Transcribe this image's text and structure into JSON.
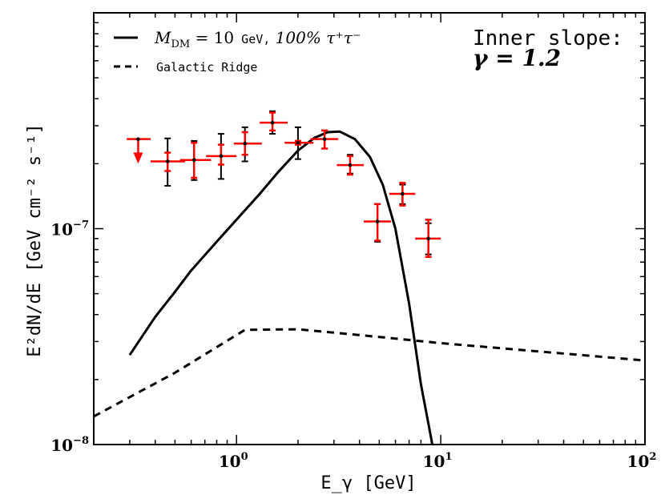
{
  "chart_data": {
    "type": "scatter",
    "title": "",
    "xlabel": "E_γ [GeV]",
    "ylabel": "E²dN/dE [GeV cm⁻² s⁻¹]",
    "x_scale": "log",
    "y_scale": "log",
    "xlim": [
      0.2,
      100
    ],
    "ylim": [
      1e-08,
      1e-06
    ],
    "x_ticks": [
      {
        "value": 1,
        "base": "10",
        "exp": "0"
      },
      {
        "value": 10,
        "base": "10",
        "exp": "1"
      },
      {
        "value": 100,
        "base": "10",
        "exp": "2"
      }
    ],
    "y_ticks": [
      {
        "value": 1e-08,
        "base": "10",
        "exp": "−8"
      },
      {
        "value": 1e-07,
        "base": "10",
        "exp": "−7"
      }
    ],
    "legend": {
      "placement": "top-left",
      "items": [
        {
          "style": "solid",
          "label_main": "M",
          "label_sub": "DM",
          "label_eq": " = 10",
          "label_unit": " GeV,",
          "label_rest": " 100% τ⁺τ⁻"
        },
        {
          "style": "dashed",
          "label": "Galactic Ridge"
        }
      ]
    },
    "annotation": {
      "line1": "Inner slope:",
      "line2": "γ = 1.2"
    },
    "series": [
      {
        "name": "M_DM = 10 GeV, 100% τ⁺τ⁻",
        "style": "solid",
        "x": [
          0.3,
          0.4,
          0.5,
          0.6,
          0.8,
          1.0,
          1.3,
          1.6,
          2.0,
          2.4,
          2.8,
          3.2,
          3.8,
          4.5,
          5.2,
          6.0,
          7.0,
          8.0,
          8.7,
          9.1
        ],
        "y": [
          2.6e-08,
          3.9e-08,
          5.1e-08,
          6.4e-08,
          8.7e-08,
          1.1e-07,
          1.45e-07,
          1.83e-07,
          2.3e-07,
          2.63e-07,
          2.8e-07,
          2.82e-07,
          2.6e-07,
          2.15e-07,
          1.6e-07,
          1e-07,
          4.5e-08,
          1.9e-08,
          1.25e-08,
          1e-08
        ]
      },
      {
        "name": "Galactic Ridge",
        "style": "dashed",
        "x": [
          0.2,
          0.5,
          1.1,
          2.0,
          3.0,
          5.0,
          10.0,
          30.0,
          100.0
        ],
        "y": [
          1.35e-08,
          2.15e-08,
          3.4e-08,
          3.42e-08,
          3.3e-08,
          3.15e-08,
          2.95e-08,
          2.7e-08,
          2.45e-08
        ]
      }
    ],
    "red_points": [
      {
        "x": 0.33,
        "y": 2.6e-07,
        "upper_limit": true,
        "arrow_to": 2e-07,
        "xerr": [
          0.29,
          0.38
        ]
      },
      {
        "x": 0.46,
        "y": 2.05e-07,
        "yerr": [
          1.85e-07,
          2.25e-07
        ],
        "xerr": [
          0.38,
          0.56
        ]
      },
      {
        "x": 0.62,
        "y": 2.08e-07,
        "yerr": [
          1.72e-07,
          2.5e-07
        ],
        "xerr": [
          0.53,
          0.75
        ]
      },
      {
        "x": 0.84,
        "y": 2.17e-07,
        "yerr": [
          1.98e-07,
          2.45e-07
        ],
        "xerr": [
          0.71,
          1.0
        ]
      },
      {
        "x": 1.1,
        "y": 2.48e-07,
        "yerr": [
          2.2e-07,
          2.8e-07
        ],
        "xerr": [
          0.97,
          1.33
        ]
      },
      {
        "x": 1.5,
        "y": 3.1e-07,
        "yerr": [
          2.85e-07,
          3.45e-07
        ],
        "xerr": [
          1.3,
          1.78
        ]
      },
      {
        "x": 2.0,
        "y": 2.5e-07,
        "yerr": [
          2.45e-07,
          2.55e-07
        ],
        "xerr": [
          1.72,
          2.38
        ]
      },
      {
        "x": 2.7,
        "y": 2.6e-07,
        "yerr": [
          2.35e-07,
          2.85e-07
        ],
        "xerr": [
          2.3,
          3.15
        ]
      },
      {
        "x": 3.6,
        "y": 1.97e-07,
        "yerr": [
          1.78e-07,
          2.17e-07
        ],
        "xerr": [
          3.1,
          4.2
        ]
      },
      {
        "x": 4.9,
        "y": 1.08e-07,
        "yerr": [
          8.8e-08,
          1.3e-07
        ],
        "xerr": [
          4.2,
          5.7
        ]
      },
      {
        "x": 6.5,
        "y": 1.45e-07,
        "yerr": [
          1.28e-07,
          1.63e-07
        ],
        "xerr": [
          5.6,
          7.5
        ]
      },
      {
        "x": 8.7,
        "y": 9e-08,
        "yerr": [
          7.4e-08,
          1.1e-07
        ],
        "xerr": [
          7.5,
          10.0
        ]
      }
    ],
    "black_points": [
      {
        "x": 0.33,
        "y": 2.6e-07
      },
      {
        "x": 0.46,
        "y": 2.05e-07,
        "yerr": [
          1.58e-07,
          2.62e-07
        ]
      },
      {
        "x": 0.62,
        "y": 2.08e-07,
        "yerr": [
          1.68e-07,
          2.55e-07
        ]
      },
      {
        "x": 0.84,
        "y": 2.17e-07,
        "yerr": [
          1.7e-07,
          2.75e-07
        ]
      },
      {
        "x": 1.1,
        "y": 2.48e-07,
        "yerr": [
          2.05e-07,
          2.95e-07
        ]
      },
      {
        "x": 1.5,
        "y": 3.1e-07,
        "yerr": [
          2.75e-07,
          3.5e-07
        ]
      },
      {
        "x": 2.0,
        "y": 2.5e-07,
        "yerr": [
          2.1e-07,
          2.95e-07
        ]
      },
      {
        "x": 2.7,
        "y": 2.6e-07,
        "yerr": [
          2.35e-07,
          2.85e-07
        ]
      },
      {
        "x": 3.6,
        "y": 1.97e-07,
        "yerr": [
          1.8e-07,
          2.2e-07
        ]
      },
      {
        "x": 4.9,
        "y": 1.08e-07,
        "yerr": [
          8.7e-08,
          1.3e-07
        ]
      },
      {
        "x": 6.5,
        "y": 1.45e-07,
        "yerr": [
          1.3e-07,
          1.6e-07
        ]
      },
      {
        "x": 8.7,
        "y": 9e-08,
        "yerr": [
          7.6e-08,
          1.06e-07
        ]
      }
    ],
    "colors": {
      "model": "#000000",
      "data_red": "#ff0000",
      "data_black": "#000000"
    }
  }
}
